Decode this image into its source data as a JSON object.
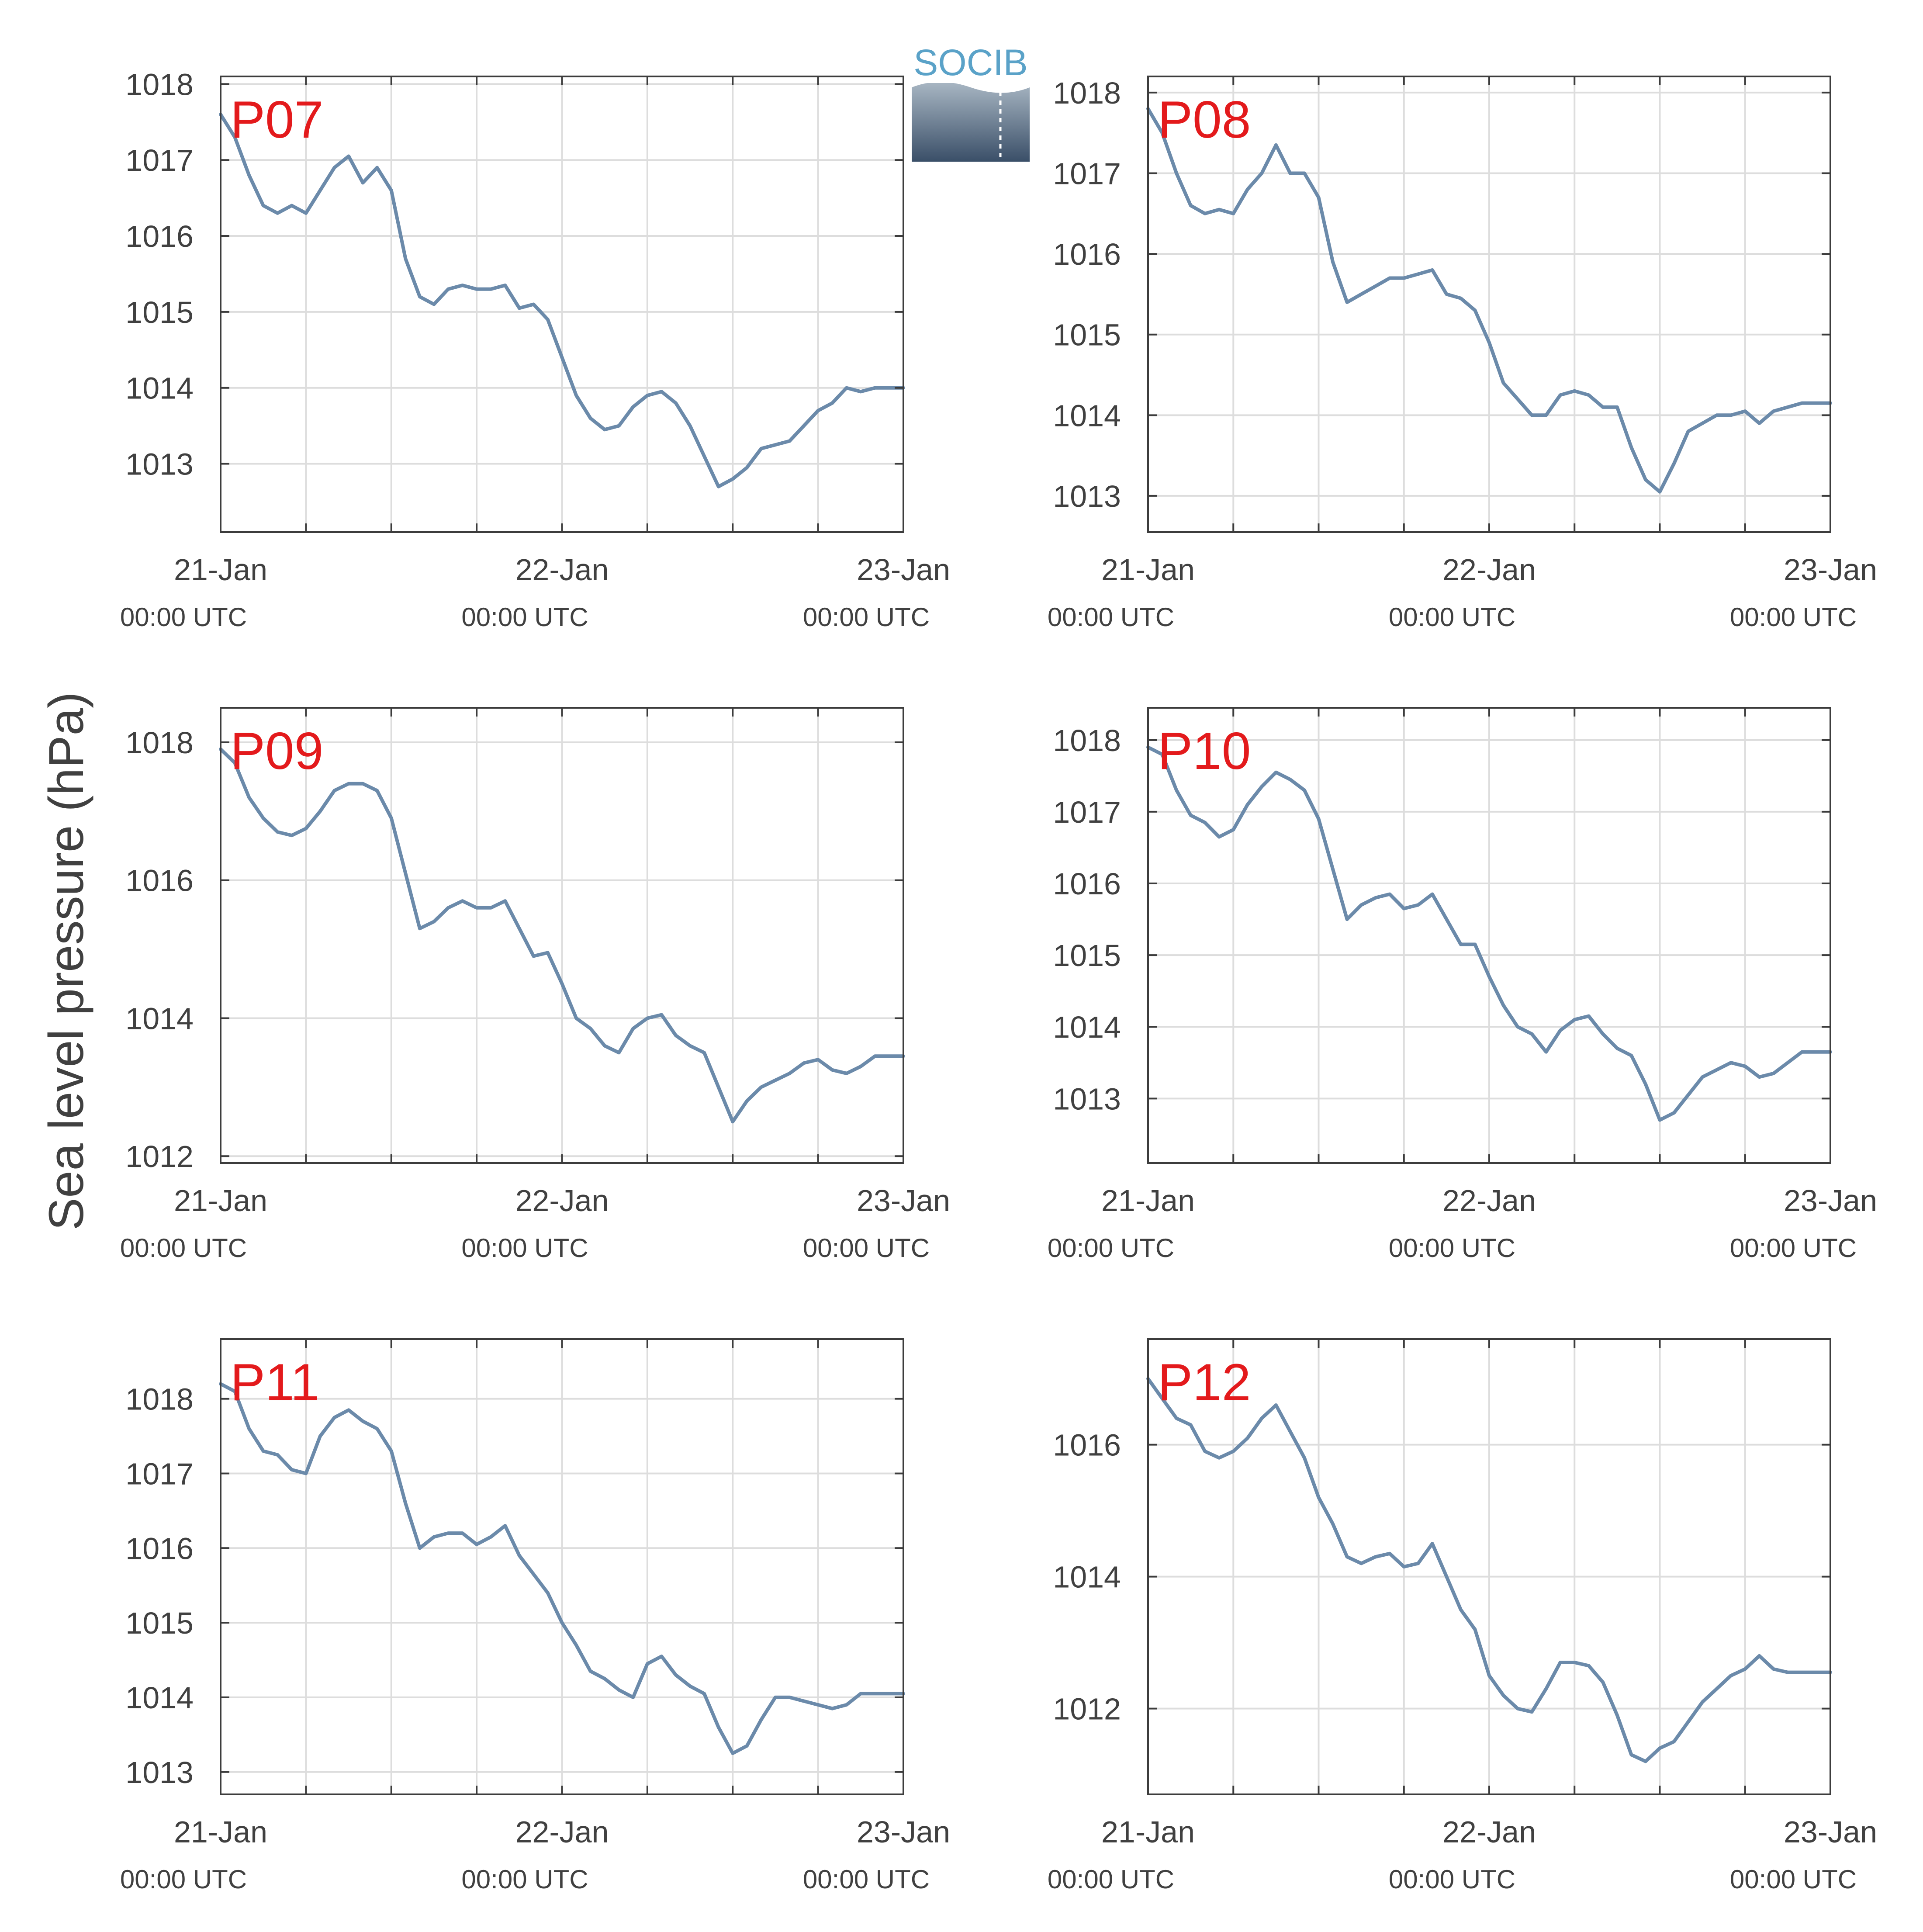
{
  "figure": {
    "ylabel": "Sea level pressure (hPa)",
    "logo_text": "SOCIB",
    "colors": {
      "line": "#6b8aaa",
      "grid": "#dddddd",
      "axis": "#3c3c3c",
      "panel_label": "#e31a1c",
      "logo_text": "#5aa2c8",
      "logo_top": "#a7b5c2",
      "logo_bottom": "#3a4f68"
    }
  },
  "chart_data": [
    {
      "type": "line",
      "name": "P07",
      "x_tick_labels": [
        [
          "21-Jan",
          "00:00 UTC"
        ],
        [
          "22-Jan",
          "00:00 UTC"
        ],
        [
          "23-Jan",
          "00:00 UTC"
        ]
      ],
      "x_range_hours": [
        0,
        48
      ],
      "ylim": [
        1012.1,
        1018.1
      ],
      "yticks": [
        1013,
        1014,
        1015,
        1016,
        1017,
        1018
      ],
      "grid": true,
      "points": [
        [
          0,
          1017.6
        ],
        [
          1,
          1017.3
        ],
        [
          2,
          1016.8
        ],
        [
          3,
          1016.4
        ],
        [
          4,
          1016.3
        ],
        [
          5,
          1016.4
        ],
        [
          6,
          1016.3
        ],
        [
          7,
          1016.6
        ],
        [
          8,
          1016.9
        ],
        [
          9,
          1017.05
        ],
        [
          10,
          1016.7
        ],
        [
          11,
          1016.9
        ],
        [
          12,
          1016.6
        ],
        [
          13,
          1015.7
        ],
        [
          14,
          1015.2
        ],
        [
          15,
          1015.1
        ],
        [
          16,
          1015.3
        ],
        [
          17,
          1015.35
        ],
        [
          18,
          1015.3
        ],
        [
          19,
          1015.3
        ],
        [
          20,
          1015.35
        ],
        [
          21,
          1015.05
        ],
        [
          22,
          1015.1
        ],
        [
          23,
          1014.9
        ],
        [
          24,
          1014.4
        ],
        [
          25,
          1013.9
        ],
        [
          26,
          1013.6
        ],
        [
          27,
          1013.45
        ],
        [
          28,
          1013.5
        ],
        [
          29,
          1013.75
        ],
        [
          30,
          1013.9
        ],
        [
          31,
          1013.95
        ],
        [
          32,
          1013.8
        ],
        [
          33,
          1013.5
        ],
        [
          34,
          1013.1
        ],
        [
          35,
          1012.7
        ],
        [
          36,
          1012.8
        ],
        [
          37,
          1012.95
        ],
        [
          38,
          1013.2
        ],
        [
          39,
          1013.25
        ],
        [
          40,
          1013.3
        ],
        [
          41,
          1013.5
        ],
        [
          42,
          1013.7
        ],
        [
          43,
          1013.8
        ],
        [
          44,
          1014.0
        ],
        [
          45,
          1013.95
        ],
        [
          46,
          1014.0
        ],
        [
          47,
          1014.0
        ],
        [
          48,
          1014.0
        ]
      ]
    },
    {
      "type": "line",
      "name": "P08",
      "x_tick_labels": [
        [
          "21-Jan",
          "00:00 UTC"
        ],
        [
          "22-Jan",
          "00:00 UTC"
        ],
        [
          "23-Jan",
          "00:00 UTC"
        ]
      ],
      "x_range_hours": [
        0,
        48
      ],
      "ylim": [
        1012.55,
        1018.2
      ],
      "yticks": [
        1013,
        1014,
        1015,
        1016,
        1017,
        1018
      ],
      "grid": true,
      "points": [
        [
          0,
          1017.8
        ],
        [
          1,
          1017.5
        ],
        [
          2,
          1017.0
        ],
        [
          3,
          1016.6
        ],
        [
          4,
          1016.5
        ],
        [
          5,
          1016.55
        ],
        [
          6,
          1016.5
        ],
        [
          7,
          1016.8
        ],
        [
          8,
          1017.0
        ],
        [
          9,
          1017.35
        ],
        [
          10,
          1017.0
        ],
        [
          11,
          1017.0
        ],
        [
          12,
          1016.7
        ],
        [
          13,
          1015.9
        ],
        [
          14,
          1015.4
        ],
        [
          15,
          1015.5
        ],
        [
          16,
          1015.6
        ],
        [
          17,
          1015.7
        ],
        [
          18,
          1015.7
        ],
        [
          19,
          1015.75
        ],
        [
          20,
          1015.8
        ],
        [
          21,
          1015.5
        ],
        [
          22,
          1015.45
        ],
        [
          23,
          1015.3
        ],
        [
          24,
          1014.9
        ],
        [
          25,
          1014.4
        ],
        [
          26,
          1014.2
        ],
        [
          27,
          1014.0
        ],
        [
          28,
          1014.0
        ],
        [
          29,
          1014.25
        ],
        [
          30,
          1014.3
        ],
        [
          31,
          1014.25
        ],
        [
          32,
          1014.1
        ],
        [
          33,
          1014.1
        ],
        [
          34,
          1013.6
        ],
        [
          35,
          1013.2
        ],
        [
          36,
          1013.05
        ],
        [
          37,
          1013.4
        ],
        [
          38,
          1013.8
        ],
        [
          39,
          1013.9
        ],
        [
          40,
          1014.0
        ],
        [
          41,
          1014.0
        ],
        [
          42,
          1014.05
        ],
        [
          43,
          1013.9
        ],
        [
          44,
          1014.05
        ],
        [
          45,
          1014.1
        ],
        [
          46,
          1014.15
        ],
        [
          47,
          1014.15
        ],
        [
          48,
          1014.15
        ]
      ]
    },
    {
      "type": "line",
      "name": "P09",
      "x_tick_labels": [
        [
          "21-Jan",
          "00:00 UTC"
        ],
        [
          "22-Jan",
          "00:00 UTC"
        ],
        [
          "23-Jan",
          "00:00 UTC"
        ]
      ],
      "x_range_hours": [
        0,
        48
      ],
      "ylim": [
        1011.9,
        1018.5
      ],
      "yticks": [
        1012,
        1014,
        1016,
        1018
      ],
      "grid": true,
      "points": [
        [
          0,
          1017.9
        ],
        [
          1,
          1017.7
        ],
        [
          2,
          1017.2
        ],
        [
          3,
          1016.9
        ],
        [
          4,
          1016.7
        ],
        [
          5,
          1016.65
        ],
        [
          6,
          1016.75
        ],
        [
          7,
          1017.0
        ],
        [
          8,
          1017.3
        ],
        [
          9,
          1017.4
        ],
        [
          10,
          1017.4
        ],
        [
          11,
          1017.3
        ],
        [
          12,
          1016.9
        ],
        [
          13,
          1016.1
        ],
        [
          14,
          1015.3
        ],
        [
          15,
          1015.4
        ],
        [
          16,
          1015.6
        ],
        [
          17,
          1015.7
        ],
        [
          18,
          1015.6
        ],
        [
          19,
          1015.6
        ],
        [
          20,
          1015.7
        ],
        [
          21,
          1015.3
        ],
        [
          22,
          1014.9
        ],
        [
          23,
          1014.95
        ],
        [
          24,
          1014.5
        ],
        [
          25,
          1014.0
        ],
        [
          26,
          1013.85
        ],
        [
          27,
          1013.6
        ],
        [
          28,
          1013.5
        ],
        [
          29,
          1013.85
        ],
        [
          30,
          1014.0
        ],
        [
          31,
          1014.05
        ],
        [
          32,
          1013.75
        ],
        [
          33,
          1013.6
        ],
        [
          34,
          1013.5
        ],
        [
          35,
          1013.0
        ],
        [
          36,
          1012.5
        ],
        [
          37,
          1012.8
        ],
        [
          38,
          1013.0
        ],
        [
          39,
          1013.1
        ],
        [
          40,
          1013.2
        ],
        [
          41,
          1013.35
        ],
        [
          42,
          1013.4
        ],
        [
          43,
          1013.25
        ],
        [
          44,
          1013.2
        ],
        [
          45,
          1013.3
        ],
        [
          46,
          1013.45
        ],
        [
          47,
          1013.45
        ],
        [
          48,
          1013.45
        ]
      ]
    },
    {
      "type": "line",
      "name": "P10",
      "x_tick_labels": [
        [
          "21-Jan",
          "00:00 UTC"
        ],
        [
          "22-Jan",
          "00:00 UTC"
        ],
        [
          "23-Jan",
          "00:00 UTC"
        ]
      ],
      "x_range_hours": [
        0,
        48
      ],
      "ylim": [
        1012.1,
        1018.45
      ],
      "yticks": [
        1013,
        1014,
        1015,
        1016,
        1017,
        1018
      ],
      "grid": true,
      "points": [
        [
          0,
          1017.9
        ],
        [
          1,
          1017.8
        ],
        [
          2,
          1017.3
        ],
        [
          3,
          1016.95
        ],
        [
          4,
          1016.85
        ],
        [
          5,
          1016.65
        ],
        [
          6,
          1016.75
        ],
        [
          7,
          1017.1
        ],
        [
          8,
          1017.35
        ],
        [
          9,
          1017.55
        ],
        [
          10,
          1017.45
        ],
        [
          11,
          1017.3
        ],
        [
          12,
          1016.9
        ],
        [
          13,
          1016.2
        ],
        [
          14,
          1015.5
        ],
        [
          15,
          1015.7
        ],
        [
          16,
          1015.8
        ],
        [
          17,
          1015.85
        ],
        [
          18,
          1015.65
        ],
        [
          19,
          1015.7
        ],
        [
          20,
          1015.85
        ],
        [
          21,
          1015.5
        ],
        [
          22,
          1015.15
        ],
        [
          23,
          1015.15
        ],
        [
          24,
          1014.7
        ],
        [
          25,
          1014.3
        ],
        [
          26,
          1014.0
        ],
        [
          27,
          1013.9
        ],
        [
          28,
          1013.65
        ],
        [
          29,
          1013.95
        ],
        [
          30,
          1014.1
        ],
        [
          31,
          1014.15
        ],
        [
          32,
          1013.9
        ],
        [
          33,
          1013.7
        ],
        [
          34,
          1013.6
        ],
        [
          35,
          1013.2
        ],
        [
          36,
          1012.7
        ],
        [
          37,
          1012.8
        ],
        [
          38,
          1013.05
        ],
        [
          39,
          1013.3
        ],
        [
          40,
          1013.4
        ],
        [
          41,
          1013.5
        ],
        [
          42,
          1013.45
        ],
        [
          43,
          1013.3
        ],
        [
          44,
          1013.35
        ],
        [
          45,
          1013.5
        ],
        [
          46,
          1013.65
        ],
        [
          47,
          1013.65
        ],
        [
          48,
          1013.65
        ]
      ]
    },
    {
      "type": "line",
      "name": "P11",
      "x_tick_labels": [
        [
          "21-Jan",
          "00:00 UTC"
        ],
        [
          "22-Jan",
          "00:00 UTC"
        ],
        [
          "23-Jan",
          "00:00 UTC"
        ]
      ],
      "x_range_hours": [
        0,
        48
      ],
      "ylim": [
        1012.7,
        1018.8
      ],
      "yticks": [
        1013,
        1014,
        1015,
        1016,
        1017,
        1018
      ],
      "grid": true,
      "points": [
        [
          0,
          1018.2
        ],
        [
          1,
          1018.1
        ],
        [
          2,
          1017.6
        ],
        [
          3,
          1017.3
        ],
        [
          4,
          1017.25
        ],
        [
          5,
          1017.05
        ],
        [
          6,
          1017.0
        ],
        [
          7,
          1017.5
        ],
        [
          8,
          1017.75
        ],
        [
          9,
          1017.85
        ],
        [
          10,
          1017.7
        ],
        [
          11,
          1017.6
        ],
        [
          12,
          1017.3
        ],
        [
          13,
          1016.6
        ],
        [
          14,
          1016.0
        ],
        [
          15,
          1016.15
        ],
        [
          16,
          1016.2
        ],
        [
          17,
          1016.2
        ],
        [
          18,
          1016.05
        ],
        [
          19,
          1016.15
        ],
        [
          20,
          1016.3
        ],
        [
          21,
          1015.9
        ],
        [
          22,
          1015.65
        ],
        [
          23,
          1015.4
        ],
        [
          24,
          1015.0
        ],
        [
          25,
          1014.7
        ],
        [
          26,
          1014.35
        ],
        [
          27,
          1014.25
        ],
        [
          28,
          1014.1
        ],
        [
          29,
          1014.0
        ],
        [
          30,
          1014.45
        ],
        [
          31,
          1014.55
        ],
        [
          32,
          1014.3
        ],
        [
          33,
          1014.15
        ],
        [
          34,
          1014.05
        ],
        [
          35,
          1013.6
        ],
        [
          36,
          1013.25
        ],
        [
          37,
          1013.35
        ],
        [
          38,
          1013.7
        ],
        [
          39,
          1014.0
        ],
        [
          40,
          1014.0
        ],
        [
          41,
          1013.95
        ],
        [
          42,
          1013.9
        ],
        [
          43,
          1013.85
        ],
        [
          44,
          1013.9
        ],
        [
          45,
          1014.05
        ],
        [
          46,
          1014.05
        ],
        [
          47,
          1014.05
        ],
        [
          48,
          1014.05
        ]
      ]
    },
    {
      "type": "line",
      "name": "P12",
      "x_tick_labels": [
        [
          "21-Jan",
          "00:00 UTC"
        ],
        [
          "22-Jan",
          "00:00 UTC"
        ],
        [
          "23-Jan",
          "00:00 UTC"
        ]
      ],
      "x_range_hours": [
        0,
        48
      ],
      "ylim": [
        1010.7,
        1017.6
      ],
      "yticks": [
        1012,
        1014,
        1016
      ],
      "grid": true,
      "points": [
        [
          0,
          1017.0
        ],
        [
          1,
          1016.7
        ],
        [
          2,
          1016.4
        ],
        [
          3,
          1016.3
        ],
        [
          4,
          1015.9
        ],
        [
          5,
          1015.8
        ],
        [
          6,
          1015.9
        ],
        [
          7,
          1016.1
        ],
        [
          8,
          1016.4
        ],
        [
          9,
          1016.6
        ],
        [
          10,
          1016.2
        ],
        [
          11,
          1015.8
        ],
        [
          12,
          1015.2
        ],
        [
          13,
          1014.8
        ],
        [
          14,
          1014.3
        ],
        [
          15,
          1014.2
        ],
        [
          16,
          1014.3
        ],
        [
          17,
          1014.35
        ],
        [
          18,
          1014.15
        ],
        [
          19,
          1014.2
        ],
        [
          20,
          1014.5
        ],
        [
          21,
          1014.0
        ],
        [
          22,
          1013.5
        ],
        [
          23,
          1013.2
        ],
        [
          24,
          1012.5
        ],
        [
          25,
          1012.2
        ],
        [
          26,
          1012.0
        ],
        [
          27,
          1011.95
        ],
        [
          28,
          1012.3
        ],
        [
          29,
          1012.7
        ],
        [
          30,
          1012.7
        ],
        [
          31,
          1012.65
        ],
        [
          32,
          1012.4
        ],
        [
          33,
          1011.9
        ],
        [
          34,
          1011.3
        ],
        [
          35,
          1011.2
        ],
        [
          36,
          1011.4
        ],
        [
          37,
          1011.5
        ],
        [
          38,
          1011.8
        ],
        [
          39,
          1012.1
        ],
        [
          40,
          1012.3
        ],
        [
          41,
          1012.5
        ],
        [
          42,
          1012.6
        ],
        [
          43,
          1012.8
        ],
        [
          44,
          1012.6
        ],
        [
          45,
          1012.55
        ],
        [
          46,
          1012.55
        ],
        [
          47,
          1012.55
        ],
        [
          48,
          1012.55
        ]
      ]
    }
  ]
}
